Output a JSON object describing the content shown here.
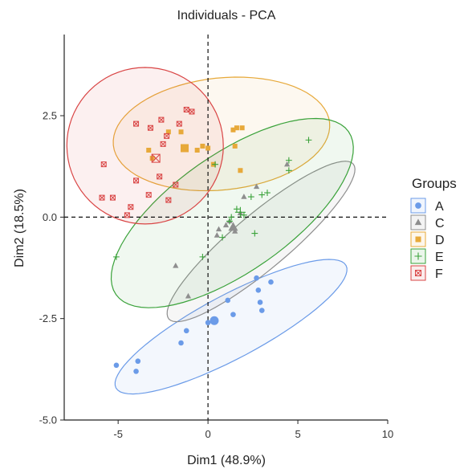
{
  "chart_data": {
    "type": "scatter",
    "title": "Individuals - PCA",
    "xlabel": "Dim1 (48.9%)",
    "ylabel": "Dim2 (18.5%)",
    "xlim": [
      -8,
      10
    ],
    "ylim": [
      -5,
      4.5
    ],
    "xticks": [
      -5,
      0,
      5,
      10
    ],
    "yticks": [
      -5.0,
      -2.5,
      0.0,
      2.5
    ],
    "xtick_labels": [
      "-5",
      "0",
      "5",
      "10"
    ],
    "ytick_labels": [
      "-5.0",
      "-2.5",
      "0.0",
      "2.5"
    ],
    "reference_lines": {
      "x": 0,
      "y": 0,
      "style": "dashed"
    },
    "grid": false,
    "legend": {
      "title": "Groups",
      "placement": "right",
      "entries": [
        "A",
        "C",
        "D",
        "E",
        "F"
      ]
    },
    "series": [
      {
        "name": "A",
        "marker": "circle",
        "color": "#6b9be8",
        "ellipse": {
          "cx": 1.28,
          "cy": -2.7,
          "rx": 7.25,
          "ry": 0.78,
          "angle": 28
        },
        "centroid": {
          "x": 0.35,
          "y": -2.55
        },
        "points": [
          {
            "x": -5.1,
            "y": -3.65
          },
          {
            "x": -3.9,
            "y": -3.55
          },
          {
            "x": -4.0,
            "y": -3.8
          },
          {
            "x": -1.5,
            "y": -3.1
          },
          {
            "x": -1.2,
            "y": -2.8
          },
          {
            "x": 0.0,
            "y": -2.6
          },
          {
            "x": 1.1,
            "y": -2.05
          },
          {
            "x": 1.4,
            "y": -2.4
          },
          {
            "x": 2.7,
            "y": -1.5
          },
          {
            "x": 2.8,
            "y": -1.8
          },
          {
            "x": 2.9,
            "y": -2.1
          },
          {
            "x": 3.0,
            "y": -2.3
          },
          {
            "x": 3.5,
            "y": -1.6
          }
        ]
      },
      {
        "name": "C",
        "marker": "triangle",
        "color": "#8e8e8e",
        "ellipse": {
          "cx": 2.95,
          "cy": -0.6,
          "rx": 6.7,
          "ry": 0.68,
          "angle": 40
        },
        "centroid": {
          "x": 1.4,
          "y": -0.25
        },
        "points": [
          {
            "x": -1.8,
            "y": -1.2
          },
          {
            "x": -1.1,
            "y": -1.95
          },
          {
            "x": 0.5,
            "y": -0.45
          },
          {
            "x": 0.6,
            "y": -0.3
          },
          {
            "x": 1.0,
            "y": -0.2
          },
          {
            "x": 1.2,
            "y": -0.1
          },
          {
            "x": 1.5,
            "y": -0.35
          },
          {
            "x": 1.8,
            "y": 0.1
          },
          {
            "x": 2.0,
            "y": 0.5
          },
          {
            "x": 2.7,
            "y": 0.75
          },
          {
            "x": 4.4,
            "y": 1.3
          }
        ]
      },
      {
        "name": "D",
        "marker": "square",
        "color": "#e7a93a",
        "ellipse": {
          "cx": 0.75,
          "cy": 2.05,
          "rx": 6.05,
          "ry": 1.38,
          "angle": 6
        },
        "centroid": {
          "x": -1.3,
          "y": 1.7
        },
        "points": [
          {
            "x": -3.3,
            "y": 1.65
          },
          {
            "x": -3.1,
            "y": 1.45
          },
          {
            "x": -2.2,
            "y": 2.1
          },
          {
            "x": -1.5,
            "y": 2.1
          },
          {
            "x": -0.6,
            "y": 1.65
          },
          {
            "x": -0.3,
            "y": 1.75
          },
          {
            "x": 0.3,
            "y": 1.3
          },
          {
            "x": 1.4,
            "y": 2.15
          },
          {
            "x": 1.5,
            "y": 1.75
          },
          {
            "x": 1.6,
            "y": 2.2
          },
          {
            "x": 1.8,
            "y": 1.15
          },
          {
            "x": 1.9,
            "y": 2.2
          },
          {
            "x": 0.0,
            "y": 1.7
          }
        ]
      },
      {
        "name": "E",
        "marker": "plus",
        "color": "#3aa23a",
        "ellipse": {
          "cx": 1.35,
          "cy": 0.1,
          "rx": 7.9,
          "ry": 1.45,
          "angle": 35
        },
        "centroid": {
          "x": 1.8,
          "y": 0.12
        },
        "points": [
          {
            "x": -5.1,
            "y": -0.98
          },
          {
            "x": -0.3,
            "y": -0.98
          },
          {
            "x": 0.4,
            "y": 1.3
          },
          {
            "x": 0.8,
            "y": -0.5
          },
          {
            "x": 1.2,
            "y": -0.1
          },
          {
            "x": 1.3,
            "y": 0.0
          },
          {
            "x": 1.6,
            "y": 0.2
          },
          {
            "x": 2.0,
            "y": 0.05
          },
          {
            "x": 2.4,
            "y": 0.5
          },
          {
            "x": 2.6,
            "y": -0.4
          },
          {
            "x": 3.0,
            "y": 0.55
          },
          {
            "x": 3.3,
            "y": 0.6
          },
          {
            "x": 4.5,
            "y": 1.15
          },
          {
            "x": 5.6,
            "y": 1.9
          },
          {
            "x": 4.5,
            "y": 1.4
          }
        ]
      },
      {
        "name": "F",
        "marker": "boxed-x",
        "color": "#d94545",
        "ellipse": {
          "cx": -3.5,
          "cy": 1.76,
          "rx": 4.35,
          "ry": 1.93,
          "angle": 55
        },
        "centroid": {
          "x": -2.9,
          "y": 1.45
        },
        "points": [
          {
            "x": -5.8,
            "y": 1.3
          },
          {
            "x": -5.9,
            "y": 0.48
          },
          {
            "x": -5.3,
            "y": 0.48
          },
          {
            "x": -4.5,
            "y": 0.05
          },
          {
            "x": -4.3,
            "y": 0.25
          },
          {
            "x": -4.0,
            "y": 2.3
          },
          {
            "x": -4.0,
            "y": 0.9
          },
          {
            "x": -3.3,
            "y": 0.55
          },
          {
            "x": -3.2,
            "y": 2.2
          },
          {
            "x": -2.7,
            "y": 1.0
          },
          {
            "x": -2.6,
            "y": 2.4
          },
          {
            "x": -2.3,
            "y": 2.0
          },
          {
            "x": -2.2,
            "y": 0.42
          },
          {
            "x": -1.8,
            "y": 0.8
          },
          {
            "x": -1.6,
            "y": 2.3
          },
          {
            "x": -1.2,
            "y": 2.65
          },
          {
            "x": -0.9,
            "y": 2.6
          },
          {
            "x": -2.5,
            "y": 1.8
          }
        ]
      }
    ]
  }
}
